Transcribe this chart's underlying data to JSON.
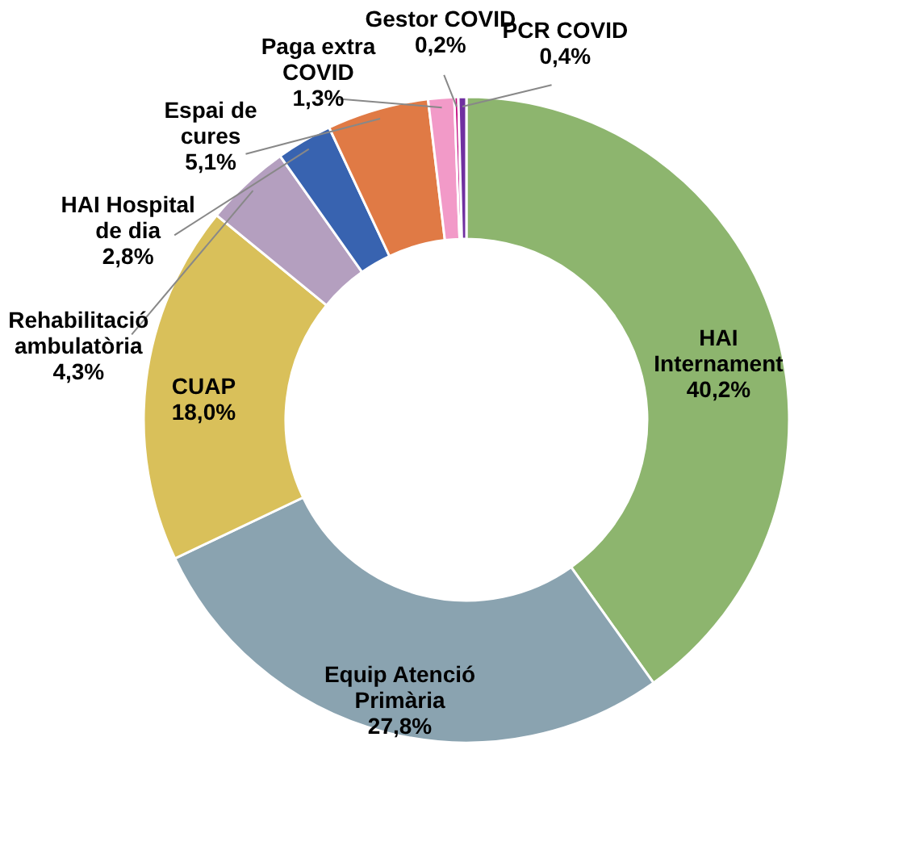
{
  "chart_data": {
    "type": "donut",
    "categories": [
      "HAI Internament",
      "Equip Atenció Primària",
      "CUAP",
      "Rehabilitació ambulatòria",
      "HAI Hospital de dia",
      "Espai de cures",
      "Paga extra COVID",
      "Gestor COVID",
      "PCR COVID"
    ],
    "values": [
      40.2,
      27.8,
      18.0,
      4.3,
      2.8,
      5.1,
      1.3,
      0.2,
      0.4
    ],
    "value_labels": [
      "40,2%",
      "27,8%",
      "18,0%",
      "4,3%",
      "2,8%",
      "5,1%",
      "1,3%",
      "0,2%",
      "0,4%"
    ],
    "colors": [
      "#8db56e",
      "#8aa3b0",
      "#d9c05a",
      "#b49fbf",
      "#3863b0",
      "#e07a45",
      "#f29ac8",
      "#c0007a",
      "#7030a0"
    ],
    "legend": false
  }
}
